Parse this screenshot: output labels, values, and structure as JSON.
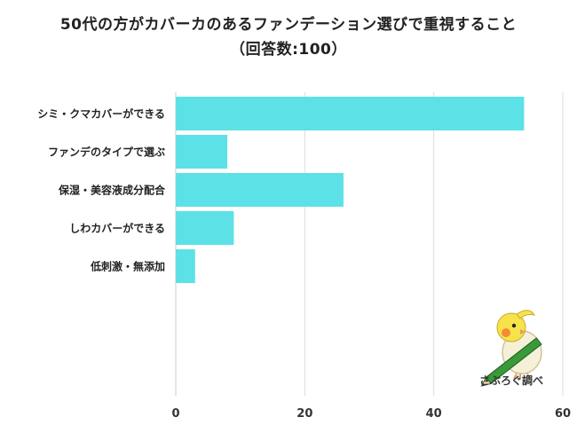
{
  "title_line1": "50代の方がカバーカのあるファンデーション選びで重視すること",
  "title_line2": "（回答数:100）",
  "watermark_text": "さぶろぐ調べ",
  "colors": {
    "bar": "#5ce1e6",
    "grid": "#dddddd",
    "axis": "#cccccc",
    "text": "#222222"
  },
  "chart_data": {
    "type": "bar",
    "orientation": "horizontal",
    "categories": [
      "シミ・クマカバーができる",
      "ファンデのタイプで選ぶ",
      "保湿・美容液成分配合",
      "しわカバーができる",
      "低刺激・無添加"
    ],
    "values": [
      54,
      8,
      26,
      9,
      3
    ],
    "xlim": [
      0,
      60
    ],
    "xticks": [
      0,
      20,
      40,
      60
    ],
    "grid": true
  }
}
